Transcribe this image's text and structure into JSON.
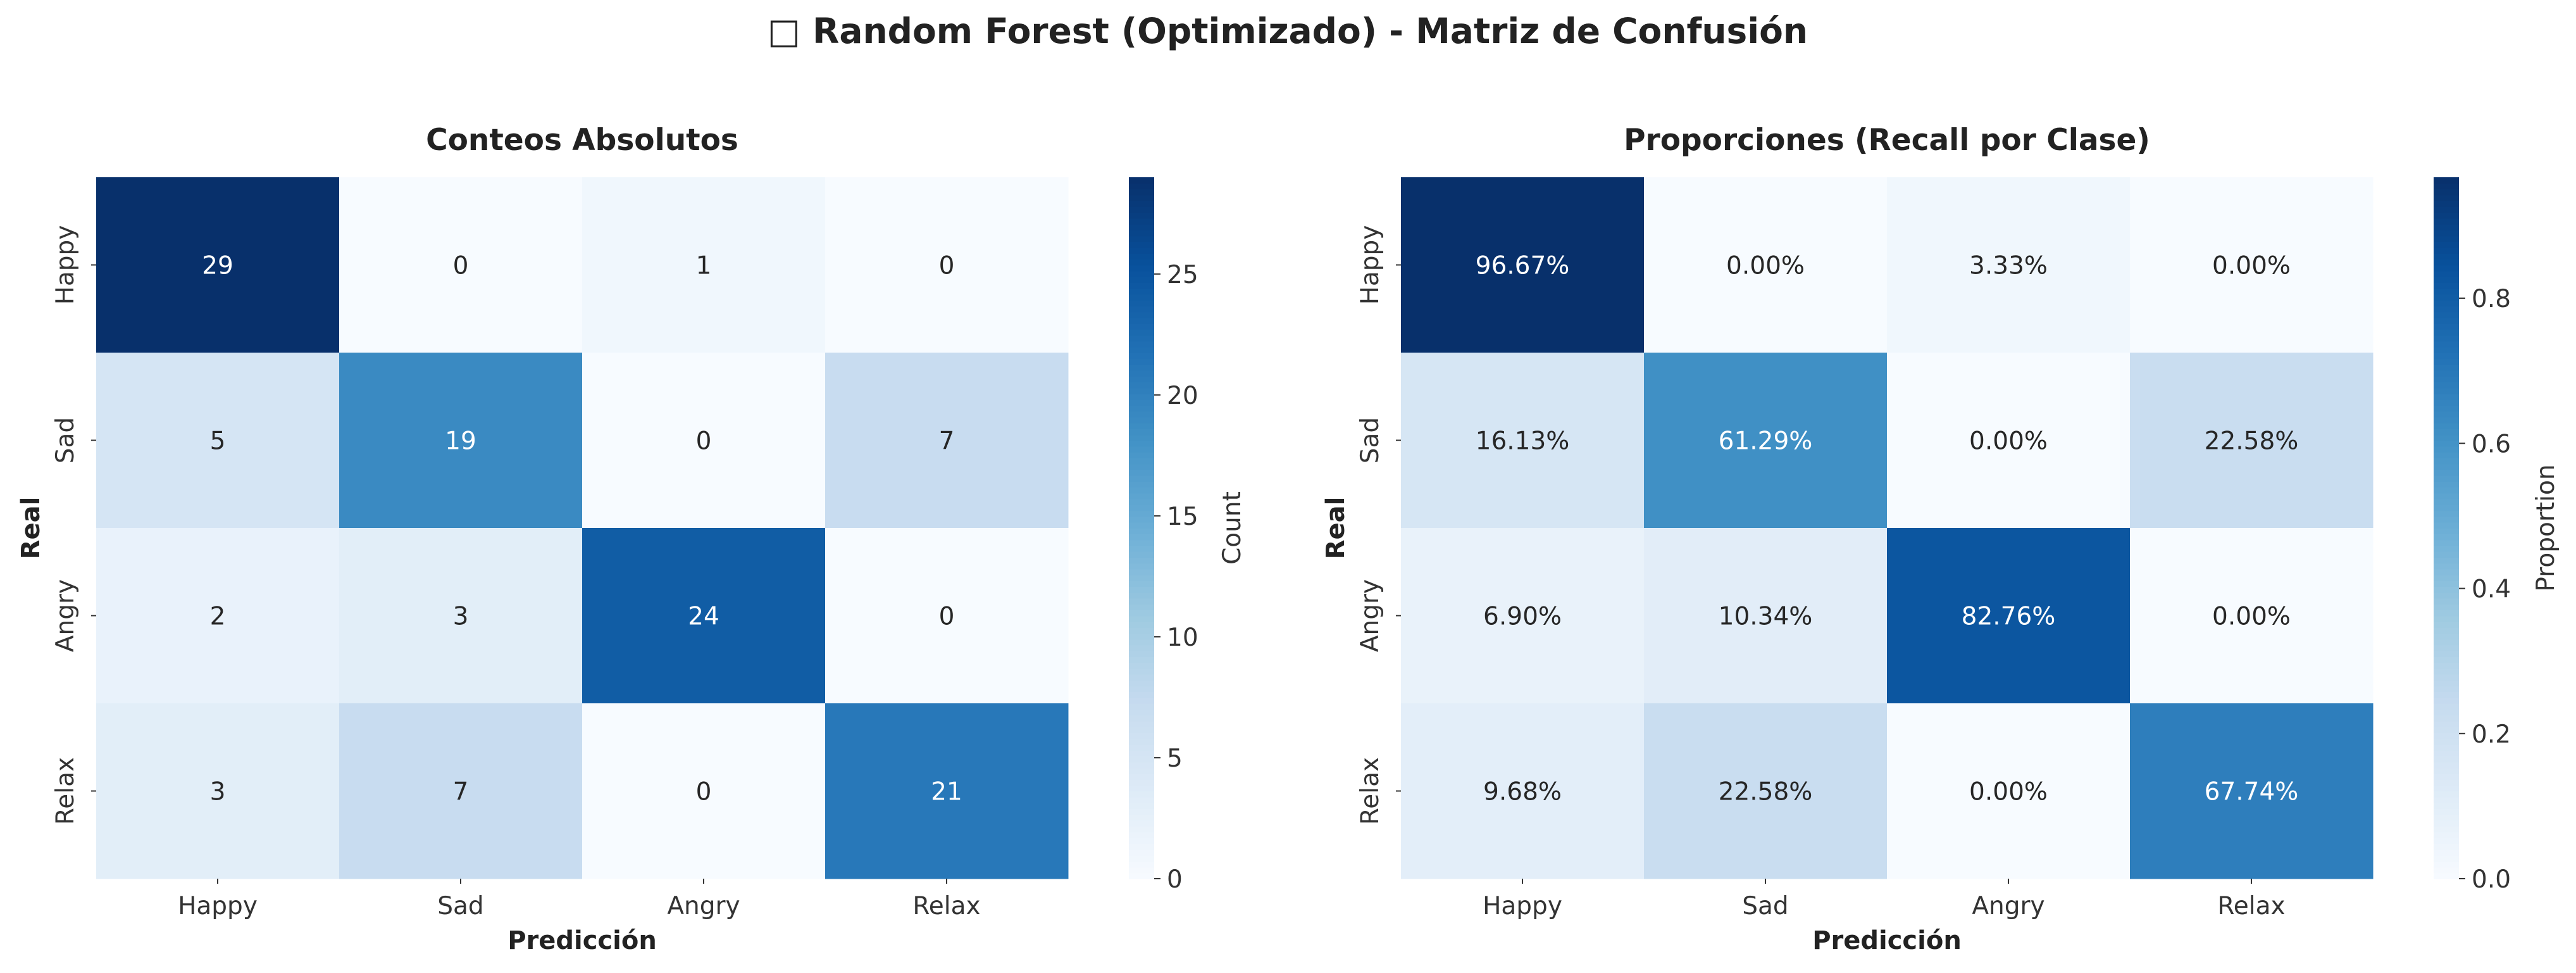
{
  "suptitle": "□ Random Forest (Optimizado) - Matriz de Confusión",
  "colormap": [
    "#f7fbff",
    "#deebf7",
    "#c6dbef",
    "#9ecae1",
    "#6baed6",
    "#4292c6",
    "#2171b5",
    "#08519c",
    "#08306b"
  ],
  "chart_data": [
    {
      "type": "heatmap",
      "title": "Conteos Absolutos",
      "xlabel": "Predicción",
      "ylabel": "Real",
      "x_categories": [
        "Happy",
        "Sad",
        "Angry",
        "Relax"
      ],
      "y_categories": [
        "Happy",
        "Sad",
        "Angry",
        "Relax"
      ],
      "values": [
        [
          29,
          0,
          1,
          0
        ],
        [
          5,
          19,
          0,
          7
        ],
        [
          2,
          3,
          24,
          0
        ],
        [
          3,
          7,
          0,
          21
        ]
      ],
      "cell_labels": [
        [
          "29",
          "0",
          "1",
          "0"
        ],
        [
          "5",
          "19",
          "0",
          "7"
        ],
        [
          "2",
          "3",
          "24",
          "0"
        ],
        [
          "3",
          "7",
          "0",
          "21"
        ]
      ],
      "colorbar": {
        "label": "Count",
        "vmin": 0,
        "vmax": 29,
        "ticks": [
          0,
          5,
          10,
          15,
          20,
          25
        ],
        "tick_labels": [
          "0",
          "5",
          "10",
          "15",
          "20",
          "25"
        ]
      }
    },
    {
      "type": "heatmap",
      "title": "Proporciones (Recall por Clase)",
      "xlabel": "Predicción",
      "ylabel": "Real",
      "x_categories": [
        "Happy",
        "Sad",
        "Angry",
        "Relax"
      ],
      "y_categories": [
        "Happy",
        "Sad",
        "Angry",
        "Relax"
      ],
      "values": [
        [
          0.9667,
          0.0,
          0.0333,
          0.0
        ],
        [
          0.1613,
          0.6129,
          0.0,
          0.2258
        ],
        [
          0.069,
          0.1034,
          0.8276,
          0.0
        ],
        [
          0.0968,
          0.2258,
          0.0,
          0.6774
        ]
      ],
      "cell_labels": [
        [
          "96.67%",
          "0.00%",
          "3.33%",
          "0.00%"
        ],
        [
          "16.13%",
          "61.29%",
          "0.00%",
          "22.58%"
        ],
        [
          "6.90%",
          "10.34%",
          "82.76%",
          "0.00%"
        ],
        [
          "9.68%",
          "22.58%",
          "0.00%",
          "67.74%"
        ]
      ],
      "colorbar": {
        "label": "Proportion",
        "vmin": 0,
        "vmax": 0.9667,
        "ticks": [
          0.0,
          0.2,
          0.4,
          0.6,
          0.8
        ],
        "tick_labels": [
          "0.0",
          "0.2",
          "0.4",
          "0.6",
          "0.8"
        ]
      }
    }
  ]
}
